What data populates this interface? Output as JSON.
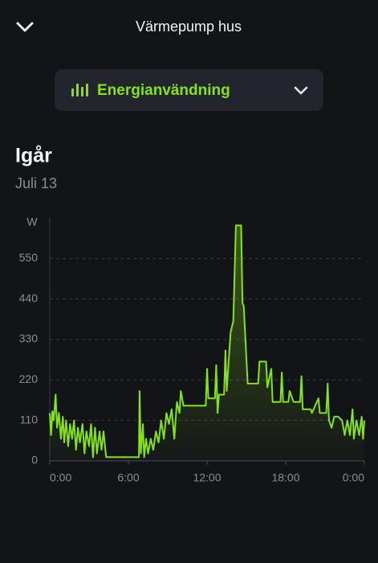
{
  "header": {
    "title": "Värmepump hus"
  },
  "selector": {
    "label": "Energianvändning"
  },
  "period": {
    "title": "Igår",
    "date": "Juli 13"
  },
  "chart_data": {
    "type": "line",
    "y_label": "W",
    "color": "#86e21b",
    "grid": true,
    "xlim": [
      0,
      24
    ],
    "ylim": [
      0,
      660
    ],
    "xticks": [
      {
        "value": 0,
        "label": "0:00"
      },
      {
        "value": 6,
        "label": "6:00"
      },
      {
        "value": 12,
        "label": "12:00"
      },
      {
        "value": 18,
        "label": "18:00"
      },
      {
        "value": 24,
        "label": "0:00"
      }
    ],
    "yticks": [
      0,
      110,
      220,
      330,
      440,
      550
    ],
    "x": [
      0,
      0.1,
      0.2,
      0.3,
      0.45,
      0.55,
      0.7,
      0.85,
      1.0,
      1.1,
      1.25,
      1.4,
      1.55,
      1.7,
      1.85,
      2.0,
      2.15,
      2.3,
      2.5,
      2.65,
      2.8,
      3.0,
      3.15,
      3.3,
      3.45,
      3.6,
      3.8,
      3.95,
      4.1,
      4.3,
      6.8,
      6.85,
      6.95,
      7.1,
      7.2,
      7.35,
      7.5,
      7.7,
      7.9,
      8.1,
      8.3,
      8.5,
      8.7,
      8.9,
      9.1,
      9.3,
      9.5,
      9.7,
      9.9,
      10.0,
      10.2,
      11.9,
      12.0,
      12.1,
      12.6,
      12.7,
      12.8,
      12.9,
      13.3,
      13.4,
      13.5,
      13.7,
      13.8,
      14.0,
      14.2,
      14.6,
      14.7,
      14.8,
      15.1,
      15.9,
      16.0,
      16.5,
      16.6,
      16.9,
      17.0,
      17.6,
      17.7,
      17.8,
      18.2,
      18.3,
      18.6,
      19.1,
      19.2,
      19.3,
      19.9,
      20.0,
      20.5,
      20.6,
      21.1,
      21.2,
      21.3,
      21.5,
      21.7,
      22.0,
      22.3,
      22.5,
      22.7,
      22.9,
      23.1,
      23.2,
      23.4,
      23.6,
      23.8,
      23.9,
      24.0
    ],
    "values": [
      130,
      70,
      135,
      110,
      180,
      90,
      130,
      60,
      120,
      50,
      110,
      40,
      100,
      60,
      110,
      30,
      90,
      50,
      100,
      20,
      80,
      40,
      100,
      10,
      90,
      20,
      80,
      30,
      80,
      10,
      10,
      190,
      20,
      100,
      10,
      60,
      20,
      60,
      30,
      80,
      50,
      110,
      60,
      130,
      100,
      140,
      60,
      160,
      130,
      190,
      150,
      150,
      250,
      170,
      170,
      260,
      130,
      180,
      180,
      300,
      190,
      300,
      350,
      380,
      640,
      640,
      430,
      420,
      210,
      210,
      270,
      270,
      200,
      250,
      160,
      160,
      240,
      160,
      160,
      190,
      160,
      160,
      230,
      140,
      140,
      130,
      170,
      130,
      130,
      210,
      110,
      90,
      120,
      120,
      110,
      70,
      110,
      70,
      140,
      60,
      110,
      70,
      120,
      60,
      110
    ]
  }
}
